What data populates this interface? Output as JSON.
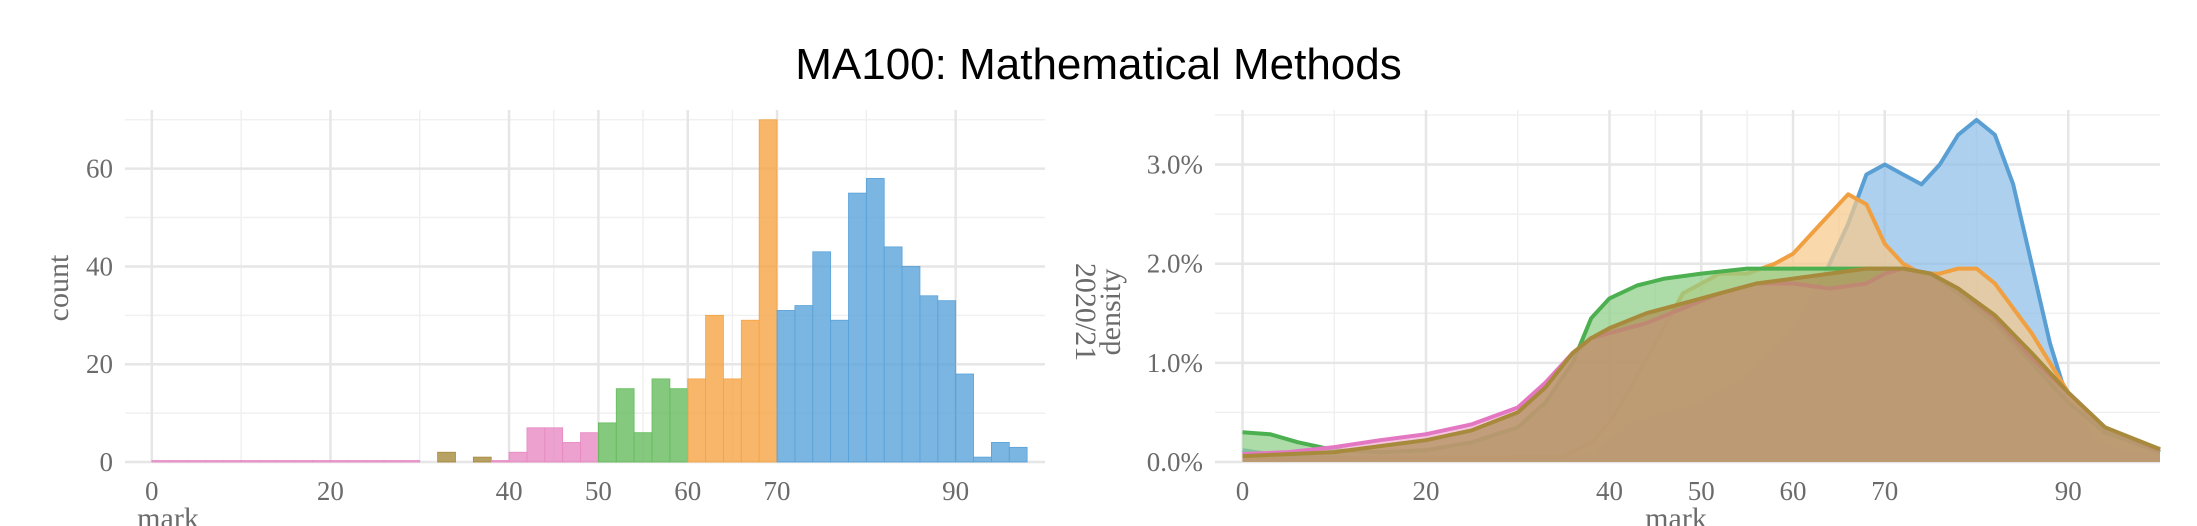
{
  "title": "MA100: Mathematical Methods",
  "chart_data": [
    {
      "type": "bar",
      "subtype": "histogram",
      "xlabel": "mark",
      "ylabel": "count",
      "xlim": [
        -3,
        100
      ],
      "ylim": [
        0,
        72
      ],
      "x_ticks": [
        0,
        20,
        40,
        50,
        60,
        70,
        90
      ],
      "y_ticks": [
        0,
        20,
        40,
        60
      ],
      "grid": true,
      "bin_width": 2,
      "bins": [
        {
          "x0": 0,
          "count": 0.3,
          "color": "#e78ac3"
        },
        {
          "x0": 2,
          "count": 0.3,
          "color": "#e78ac3"
        },
        {
          "x0": 4,
          "count": 0.3,
          "color": "#e78ac3"
        },
        {
          "x0": 6,
          "count": 0.3,
          "color": "#e78ac3"
        },
        {
          "x0": 8,
          "count": 0.3,
          "color": "#e78ac3"
        },
        {
          "x0": 10,
          "count": 0.3,
          "color": "#e78ac3"
        },
        {
          "x0": 12,
          "count": 0.3,
          "color": "#e78ac3"
        },
        {
          "x0": 14,
          "count": 0.3,
          "color": "#e78ac3"
        },
        {
          "x0": 16,
          "count": 0.3,
          "color": "#e78ac3"
        },
        {
          "x0": 18,
          "count": 0.3,
          "color": "#e78ac3"
        },
        {
          "x0": 20,
          "count": 0.3,
          "color": "#e78ac3"
        },
        {
          "x0": 22,
          "count": 0.3,
          "color": "#e78ac3"
        },
        {
          "x0": 24,
          "count": 0.3,
          "color": "#e78ac3"
        },
        {
          "x0": 26,
          "count": 0.3,
          "color": "#e78ac3"
        },
        {
          "x0": 28,
          "count": 0.3,
          "color": "#e78ac3"
        },
        {
          "x0": 32,
          "count": 2,
          "color": "#a68b3c"
        },
        {
          "x0": 36,
          "count": 1,
          "color": "#a68b3c"
        },
        {
          "x0": 38,
          "count": 0.3,
          "color": "#e78ac3"
        },
        {
          "x0": 40,
          "count": 2,
          "color": "#e78ac3"
        },
        {
          "x0": 42,
          "count": 7,
          "color": "#e78ac3"
        },
        {
          "x0": 44,
          "count": 7,
          "color": "#e78ac3"
        },
        {
          "x0": 46,
          "count": 4,
          "color": "#e78ac3"
        },
        {
          "x0": 48,
          "count": 6,
          "color": "#e78ac3"
        },
        {
          "x0": 50,
          "count": 8,
          "color": "#66bb5e"
        },
        {
          "x0": 52,
          "count": 15,
          "color": "#66bb5e"
        },
        {
          "x0": 54,
          "count": 6,
          "color": "#66bb5e"
        },
        {
          "x0": 56,
          "count": 17,
          "color": "#66bb5e"
        },
        {
          "x0": 58,
          "count": 15,
          "color": "#66bb5e"
        },
        {
          "x0": 60,
          "count": 17,
          "color": "#f5a443"
        },
        {
          "x0": 62,
          "count": 30,
          "color": "#f5a443"
        },
        {
          "x0": 64,
          "count": 17,
          "color": "#f5a443"
        },
        {
          "x0": 66,
          "count": 29,
          "color": "#f5a443"
        },
        {
          "x0": 68,
          "count": 70,
          "color": "#f5a443"
        },
        {
          "x0": 70,
          "count": 31,
          "color": "#5aa2d9"
        },
        {
          "x0": 72,
          "count": 32,
          "color": "#5aa2d9"
        },
        {
          "x0": 74,
          "count": 43,
          "color": "#5aa2d9"
        },
        {
          "x0": 76,
          "count": 29,
          "color": "#5aa2d9"
        },
        {
          "x0": 78,
          "count": 55,
          "color": "#5aa2d9"
        },
        {
          "x0": 80,
          "count": 58,
          "color": "#5aa2d9"
        },
        {
          "x0": 82,
          "count": 44,
          "color": "#5aa2d9"
        },
        {
          "x0": 84,
          "count": 40,
          "color": "#5aa2d9"
        },
        {
          "x0": 86,
          "count": 34,
          "color": "#5aa2d9"
        },
        {
          "x0": 88,
          "count": 33,
          "color": "#5aa2d9"
        },
        {
          "x0": 90,
          "count": 18,
          "color": "#5aa2d9"
        },
        {
          "x0": 92,
          "count": 1,
          "color": "#5aa2d9"
        },
        {
          "x0": 94,
          "count": 4,
          "color": "#5aa2d9"
        },
        {
          "x0": 96,
          "count": 3,
          "color": "#5aa2d9"
        }
      ]
    },
    {
      "type": "area",
      "subtype": "density",
      "xlabel": "mark",
      "ylabel": "density",
      "facet_label": "2020/21",
      "xlim": [
        -3,
        100
      ],
      "ylim": [
        0,
        0.0355
      ],
      "x_ticks": [
        0,
        20,
        40,
        50,
        60,
        70,
        90
      ],
      "y_ticks": [
        0,
        0.01,
        0.02,
        0.03
      ],
      "y_tick_labels": [
        "0.0%",
        "1.0%",
        "2.0%",
        "3.0%"
      ],
      "grid": true,
      "x_range": [
        0,
        100
      ],
      "series": [
        {
          "color": "#5a9fd4",
          "fill": "#8ebee8",
          "points": [
            [
              0,
              0.0012
            ],
            [
              5,
              0.0005
            ],
            [
              10,
              0.0004
            ],
            [
              20,
              0.0004
            ],
            [
              30,
              0.0004
            ],
            [
              35,
              0.0004
            ],
            [
              38,
              0.0006
            ],
            [
              42,
              0.0035
            ],
            [
              45,
              0.0045
            ],
            [
              50,
              0.0058
            ],
            [
              55,
              0.0085
            ],
            [
              60,
              0.013
            ],
            [
              63,
              0.018
            ],
            [
              66,
              0.024
            ],
            [
              68,
              0.029
            ],
            [
              70,
              0.03
            ],
            [
              72,
              0.029
            ],
            [
              74,
              0.028
            ],
            [
              76,
              0.03
            ],
            [
              78,
              0.033
            ],
            [
              80,
              0.0345
            ],
            [
              82,
              0.033
            ],
            [
              84,
              0.028
            ],
            [
              86,
              0.02
            ],
            [
              88,
              0.012
            ],
            [
              90,
              0.006
            ],
            [
              93,
              0.002
            ],
            [
              96,
              0.001
            ],
            [
              100,
              0.0008
            ]
          ]
        },
        {
          "color": "#f0a040",
          "fill": "#f7c98a",
          "points": [
            [
              0,
              0.0004
            ],
            [
              5,
              0.0003
            ],
            [
              10,
              0.0003
            ],
            [
              20,
              0.0004
            ],
            [
              30,
              0.0005
            ],
            [
              35,
              0.0006
            ],
            [
              38,
              0.002
            ],
            [
              40,
              0.004
            ],
            [
              42,
              0.007
            ],
            [
              45,
              0.012
            ],
            [
              48,
              0.017
            ],
            [
              52,
              0.019
            ],
            [
              55,
              0.019
            ],
            [
              58,
              0.02
            ],
            [
              60,
              0.021
            ],
            [
              63,
              0.024
            ],
            [
              65,
              0.026
            ],
            [
              66,
              0.027
            ],
            [
              68,
              0.026
            ],
            [
              70,
              0.022
            ],
            [
              72,
              0.02
            ],
            [
              74,
              0.019
            ],
            [
              76,
              0.019
            ],
            [
              78,
              0.0195
            ],
            [
              80,
              0.0195
            ],
            [
              82,
              0.018
            ],
            [
              86,
              0.013
            ],
            [
              90,
              0.007
            ],
            [
              94,
              0.003
            ],
            [
              100,
              0.001
            ]
          ]
        },
        {
          "color": "#4caf50",
          "fill": "#8fcf86",
          "points": [
            [
              0,
              0.003
            ],
            [
              3,
              0.0028
            ],
            [
              6,
              0.002
            ],
            [
              10,
              0.0012
            ],
            [
              15,
              0.001
            ],
            [
              20,
              0.0012
            ],
            [
              25,
              0.002
            ],
            [
              30,
              0.0035
            ],
            [
              33,
              0.006
            ],
            [
              36,
              0.01
            ],
            [
              38,
              0.0145
            ],
            [
              40,
              0.0165
            ],
            [
              43,
              0.0178
            ],
            [
              46,
              0.0185
            ],
            [
              50,
              0.019
            ],
            [
              55,
              0.0195
            ],
            [
              60,
              0.0195
            ],
            [
              65,
              0.0195
            ],
            [
              70,
              0.0195
            ],
            [
              72,
              0.0195
            ],
            [
              75,
              0.019
            ],
            [
              78,
              0.017
            ],
            [
              82,
              0.014
            ],
            [
              86,
              0.01
            ],
            [
              90,
              0.006
            ],
            [
              94,
              0.003
            ],
            [
              100,
              0.001
            ]
          ]
        },
        {
          "color": "#e377c2",
          "fill": "#f0b0d5",
          "points": [
            [
              0,
              0.0008
            ],
            [
              5,
              0.001
            ],
            [
              10,
              0.0015
            ],
            [
              15,
              0.0022
            ],
            [
              20,
              0.0028
            ],
            [
              25,
              0.0038
            ],
            [
              30,
              0.0055
            ],
            [
              33,
              0.008
            ],
            [
              36,
              0.011
            ],
            [
              38,
              0.0125
            ],
            [
              40,
              0.013
            ],
            [
              44,
              0.014
            ],
            [
              48,
              0.0155
            ],
            [
              52,
              0.017
            ],
            [
              56,
              0.018
            ],
            [
              60,
              0.018
            ],
            [
              64,
              0.0175
            ],
            [
              68,
              0.018
            ],
            [
              70,
              0.019
            ],
            [
              72,
              0.0195
            ],
            [
              75,
              0.019
            ],
            [
              78,
              0.0175
            ],
            [
              82,
              0.0145
            ],
            [
              86,
              0.0105
            ],
            [
              90,
              0.007
            ],
            [
              94,
              0.0035
            ],
            [
              100,
              0.0012
            ]
          ]
        },
        {
          "color": "#a88a3c",
          "fill": "#b08f55",
          "points": [
            [
              0,
              0.0006
            ],
            [
              5,
              0.0008
            ],
            [
              10,
              0.001
            ],
            [
              15,
              0.0016
            ],
            [
              20,
              0.0022
            ],
            [
              25,
              0.0032
            ],
            [
              30,
              0.005
            ],
            [
              33,
              0.0075
            ],
            [
              36,
              0.011
            ],
            [
              38,
              0.0125
            ],
            [
              40,
              0.0135
            ],
            [
              44,
              0.015
            ],
            [
              48,
              0.016
            ],
            [
              52,
              0.017
            ],
            [
              56,
              0.018
            ],
            [
              60,
              0.0185
            ],
            [
              64,
              0.019
            ],
            [
              68,
              0.0195
            ],
            [
              72,
              0.0195
            ],
            [
              75,
              0.019
            ],
            [
              78,
              0.0175
            ],
            [
              82,
              0.0148
            ],
            [
              86,
              0.011
            ],
            [
              90,
              0.007
            ],
            [
              94,
              0.0035
            ],
            [
              100,
              0.0013
            ]
          ]
        }
      ]
    }
  ]
}
